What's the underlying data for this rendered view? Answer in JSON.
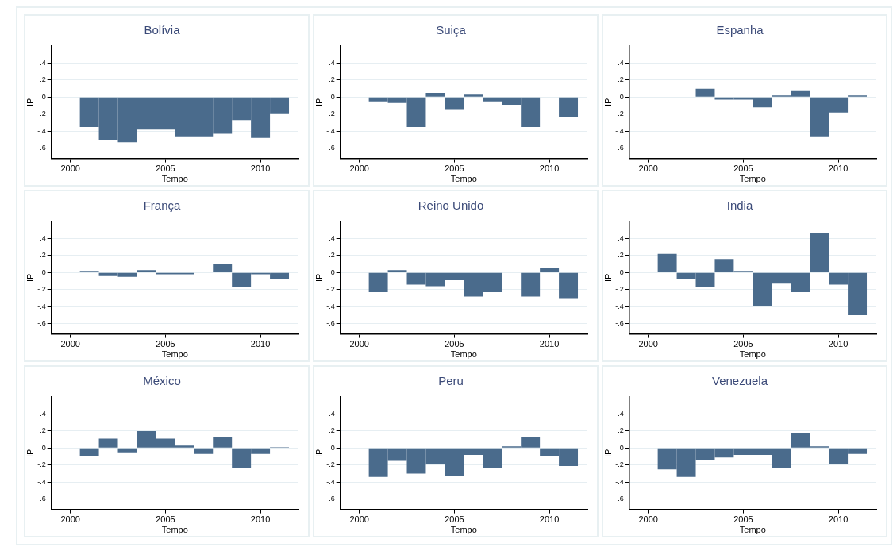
{
  "chart_data": [
    {
      "type": "bar",
      "title": "Bolívia",
      "xlabel": "Tempo",
      "ylabel": "IP",
      "color": "#4a6b8c",
      "x": [
        2001,
        2002,
        2003,
        2004,
        2005,
        2006,
        2007,
        2008,
        2009,
        2010,
        2011
      ],
      "values": [
        -0.35,
        -0.5,
        -0.53,
        -0.38,
        -0.38,
        -0.46,
        -0.46,
        -0.43,
        -0.27,
        -0.48,
        -0.19
      ],
      "xlim": [
        1999,
        2012
      ],
      "xticks": [
        2000,
        2005,
        2010
      ],
      "ylim": [
        -0.72,
        0.6
      ],
      "yticks": [
        {
          "value": -0.6,
          "label": "-.6"
        },
        {
          "value": -0.4,
          "label": "-.4"
        },
        {
          "value": -0.2,
          "label": "-.2"
        },
        {
          "value": 0,
          "label": "0"
        },
        {
          "value": 0.2,
          "label": ".2"
        },
        {
          "value": 0.4,
          "label": ".4"
        }
      ],
      "grid": "y"
    },
    {
      "type": "bar",
      "title": "Suiça",
      "xlabel": "Tempo",
      "ylabel": "IP",
      "color": "#4a6b8c",
      "x": [
        2001,
        2002,
        2003,
        2004,
        2005,
        2006,
        2007,
        2008,
        2009,
        2010,
        2011
      ],
      "values": [
        -0.05,
        -0.07,
        -0.35,
        0.05,
        -0.14,
        0.03,
        -0.05,
        -0.09,
        -0.35,
        0,
        -0.23
      ],
      "xlim": [
        1999,
        2012
      ],
      "xticks": [
        2000,
        2005,
        2010
      ],
      "ylim": [
        -0.72,
        0.6
      ],
      "yticks": [
        {
          "value": -0.6,
          "label": "-.6"
        },
        {
          "value": -0.4,
          "label": "-.4"
        },
        {
          "value": -0.2,
          "label": "-.2"
        },
        {
          "value": 0,
          "label": "0"
        },
        {
          "value": 0.2,
          "label": ".2"
        },
        {
          "value": 0.4,
          "label": ".4"
        }
      ],
      "grid": "y"
    },
    {
      "type": "bar",
      "title": "Espanha",
      "xlabel": "Tempo",
      "ylabel": "IP",
      "color": "#4a6b8c",
      "x": [
        2001,
        2002,
        2003,
        2004,
        2005,
        2006,
        2007,
        2008,
        2009,
        2010,
        2011
      ],
      "values": [
        0,
        0,
        0.1,
        -0.03,
        -0.03,
        -0.12,
        0.02,
        0.08,
        -0.46,
        -0.18,
        0.02
      ],
      "xlim": [
        1999,
        2012
      ],
      "xticks": [
        2000,
        2005,
        2010
      ],
      "ylim": [
        -0.72,
        0.6
      ],
      "yticks": [
        {
          "value": -0.6,
          "label": "-.6"
        },
        {
          "value": -0.4,
          "label": "-.4"
        },
        {
          "value": -0.2,
          "label": "-.2"
        },
        {
          "value": 0,
          "label": "0"
        },
        {
          "value": 0.2,
          "label": ".2"
        },
        {
          "value": 0.4,
          "label": ".4"
        }
      ],
      "grid": "y"
    },
    {
      "type": "bar",
      "title": "França",
      "xlabel": "Tempo",
      "ylabel": "IP",
      "color": "#4a6b8c",
      "x": [
        2001,
        2002,
        2003,
        2004,
        2005,
        2006,
        2007,
        2008,
        2009,
        2010,
        2011
      ],
      "values": [
        0.02,
        -0.04,
        -0.05,
        0.03,
        -0.02,
        -0.02,
        0,
        0.1,
        -0.17,
        -0.02,
        -0.08
      ],
      "xlim": [
        1999,
        2012
      ],
      "xticks": [
        2000,
        2005,
        2010
      ],
      "ylim": [
        -0.72,
        0.6
      ],
      "yticks": [
        {
          "value": -0.6,
          "label": "-.6"
        },
        {
          "value": -0.4,
          "label": "-.4"
        },
        {
          "value": -0.2,
          "label": "-.2"
        },
        {
          "value": 0,
          "label": "0"
        },
        {
          "value": 0.2,
          "label": ".2"
        },
        {
          "value": 0.4,
          "label": ".4"
        }
      ],
      "grid": "y"
    },
    {
      "type": "bar",
      "title": "Reino Unido",
      "xlabel": "Tempo",
      "ylabel": "IP",
      "color": "#4a6b8c",
      "x": [
        2001,
        2002,
        2003,
        2004,
        2005,
        2006,
        2007,
        2008,
        2009,
        2010,
        2011
      ],
      "values": [
        -0.23,
        0.03,
        -0.14,
        -0.16,
        -0.09,
        -0.28,
        -0.23,
        0,
        -0.28,
        0.05,
        -0.3
      ],
      "xlim": [
        1999,
        2012
      ],
      "xticks": [
        2000,
        2005,
        2010
      ],
      "ylim": [
        -0.72,
        0.6
      ],
      "yticks": [
        {
          "value": -0.6,
          "label": "-.6"
        },
        {
          "value": -0.4,
          "label": "-.4"
        },
        {
          "value": -0.2,
          "label": "-.2"
        },
        {
          "value": 0,
          "label": "0"
        },
        {
          "value": 0.2,
          "label": ".2"
        },
        {
          "value": 0.4,
          "label": ".4"
        }
      ],
      "grid": "y"
    },
    {
      "type": "bar",
      "title": "India",
      "xlabel": "Tempo",
      "ylabel": "IP",
      "color": "#4a6b8c",
      "x": [
        2001,
        2002,
        2003,
        2004,
        2005,
        2006,
        2007,
        2008,
        2009,
        2010,
        2011
      ],
      "values": [
        0.22,
        -0.08,
        -0.17,
        0.16,
        0.02,
        -0.39,
        -0.13,
        -0.23,
        0.47,
        -0.14,
        -0.5
      ],
      "xlim": [
        1999,
        2012
      ],
      "xticks": [
        2000,
        2005,
        2010
      ],
      "ylim": [
        -0.72,
        0.6
      ],
      "yticks": [
        {
          "value": -0.6,
          "label": "-.6"
        },
        {
          "value": -0.4,
          "label": "-.4"
        },
        {
          "value": -0.2,
          "label": "-.2"
        },
        {
          "value": 0,
          "label": "0"
        },
        {
          "value": 0.2,
          "label": ".2"
        },
        {
          "value": 0.4,
          "label": ".4"
        }
      ],
      "grid": "y"
    },
    {
      "type": "bar",
      "title": "México",
      "xlabel": "Tempo",
      "ylabel": "IP",
      "color": "#4a6b8c",
      "x": [
        2001,
        2002,
        2003,
        2004,
        2005,
        2006,
        2007,
        2008,
        2009,
        2010,
        2011
      ],
      "values": [
        -0.09,
        0.11,
        -0.05,
        0.2,
        0.11,
        0.03,
        -0.07,
        0.13,
        -0.23,
        -0.07,
        0.01
      ],
      "xlim": [
        1999,
        2012
      ],
      "xticks": [
        2000,
        2005,
        2010
      ],
      "ylim": [
        -0.72,
        0.6
      ],
      "yticks": [
        {
          "value": -0.6,
          "label": "-.6"
        },
        {
          "value": -0.4,
          "label": "-.4"
        },
        {
          "value": -0.2,
          "label": "-.2"
        },
        {
          "value": 0,
          "label": "0"
        },
        {
          "value": 0.2,
          "label": ".2"
        },
        {
          "value": 0.4,
          "label": ".4"
        }
      ],
      "grid": "y"
    },
    {
      "type": "bar",
      "title": "Peru",
      "xlabel": "Tempo",
      "ylabel": "IP",
      "color": "#4a6b8c",
      "x": [
        2001,
        2002,
        2003,
        2004,
        2005,
        2006,
        2007,
        2008,
        2009,
        2010,
        2011
      ],
      "values": [
        -0.34,
        -0.15,
        -0.3,
        -0.19,
        -0.33,
        -0.08,
        -0.23,
        0.02,
        0.13,
        -0.09,
        -0.21
      ],
      "xlim": [
        1999,
        2012
      ],
      "xticks": [
        2000,
        2005,
        2010
      ],
      "ylim": [
        -0.72,
        0.6
      ],
      "yticks": [
        {
          "value": -0.6,
          "label": "-.6"
        },
        {
          "value": -0.4,
          "label": "-.4"
        },
        {
          "value": -0.2,
          "label": "-.2"
        },
        {
          "value": 0,
          "label": "0"
        },
        {
          "value": 0.2,
          "label": ".2"
        },
        {
          "value": 0.4,
          "label": ".4"
        }
      ],
      "grid": "y"
    },
    {
      "type": "bar",
      "title": "Venezuela",
      "xlabel": "Tempo",
      "ylabel": "IP",
      "color": "#4a6b8c",
      "x": [
        2001,
        2002,
        2003,
        2004,
        2005,
        2006,
        2007,
        2008,
        2009,
        2010,
        2011
      ],
      "values": [
        -0.25,
        -0.34,
        -0.14,
        -0.11,
        -0.08,
        -0.08,
        -0.23,
        0.18,
        0.02,
        -0.19,
        -0.07
      ],
      "xlim": [
        1999,
        2012
      ],
      "xticks": [
        2000,
        2005,
        2010
      ],
      "ylim": [
        -0.72,
        0.6
      ],
      "yticks": [
        {
          "value": -0.6,
          "label": "-.6"
        },
        {
          "value": -0.4,
          "label": "-.4"
        },
        {
          "value": -0.2,
          "label": "-.2"
        },
        {
          "value": 0,
          "label": "0"
        },
        {
          "value": 0.2,
          "label": ".2"
        },
        {
          "value": 0.4,
          "label": ".4"
        }
      ],
      "grid": "y"
    }
  ]
}
